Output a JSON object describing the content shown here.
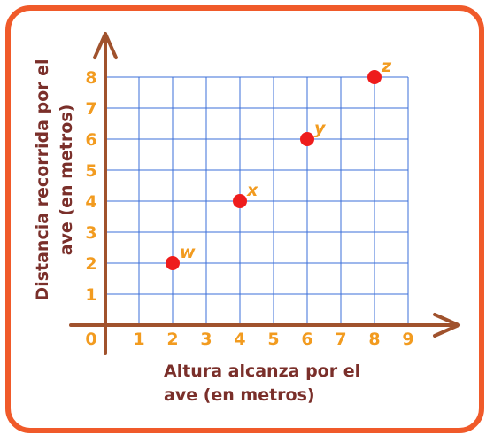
{
  "chart_data": {
    "type": "scatter",
    "xlabel_lines": [
      "Altura alcanza por el",
      "ave (en metros)"
    ],
    "ylabel_lines": [
      "Distancia recorrida por el",
      "ave (en metros)"
    ],
    "xlim": [
      0,
      9
    ],
    "ylim": [
      0,
      8
    ],
    "x_ticks": [
      "0",
      "1",
      "2",
      "3",
      "4",
      "5",
      "6",
      "7",
      "8",
      "9"
    ],
    "y_ticks": [
      "1",
      "2",
      "3",
      "4",
      "5",
      "6",
      "7",
      "8"
    ],
    "grid": true,
    "points": [
      {
        "label": "w",
        "x": 2,
        "y": 2
      },
      {
        "label": "x",
        "x": 4,
        "y": 4
      },
      {
        "label": "y",
        "x": 6,
        "y": 6
      },
      {
        "label": "z",
        "x": 8,
        "y": 8
      }
    ]
  },
  "colors": {
    "frame": "#f05a2a",
    "axis": "#a0522d",
    "grid": "#3b6fd8",
    "point": "#ee1c1c",
    "tick_text": "#f29b1f",
    "title_text": "#7a2f2a"
  }
}
